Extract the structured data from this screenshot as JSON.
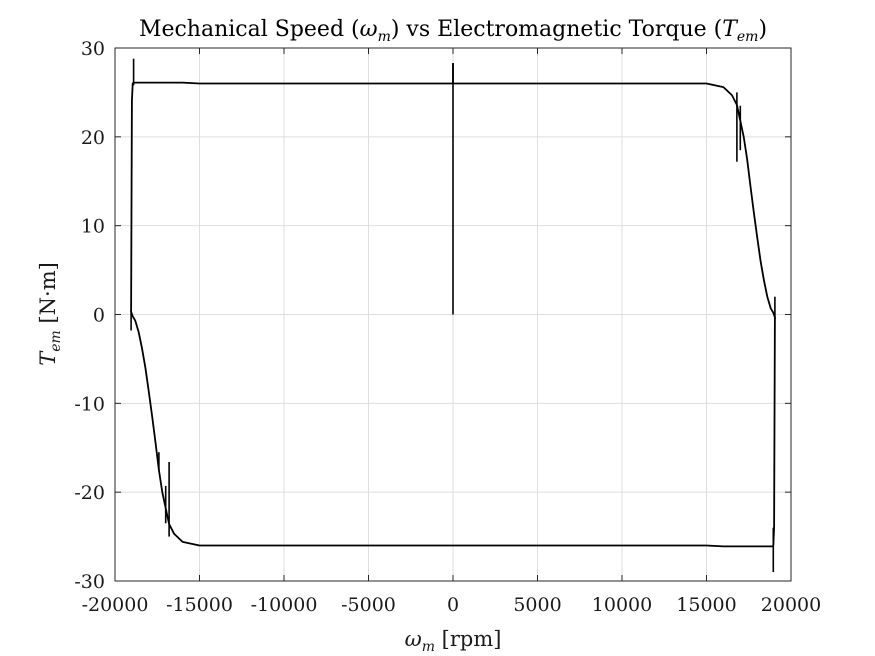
{
  "chart_data": {
    "type": "line",
    "title": {
      "prefix": "Mechanical Speed (",
      "omega": "ω",
      "omega_sub": "m",
      "middle": ") vs Electromagnetic Torque (",
      "torque": "T",
      "torque_sub": "em",
      "suffix": ")"
    },
    "xlabel": {
      "symbol": "ω",
      "sub": "m",
      "unit": " [rpm]"
    },
    "ylabel": {
      "symbol": "T",
      "sub": "em",
      "unit": " [N·m]"
    },
    "xlim": [
      -20000,
      20000
    ],
    "ylim": [
      -30,
      30
    ],
    "xticks": [
      -20000,
      -15000,
      -10000,
      -5000,
      0,
      5000,
      10000,
      15000,
      20000
    ],
    "xtick_labels": [
      "-20000",
      "-15000",
      "-10000",
      "-5000",
      "0",
      "5000",
      "10000",
      "15000",
      "20000"
    ],
    "yticks": [
      -30,
      -20,
      -10,
      0,
      10,
      20,
      30
    ],
    "ytick_labels": [
      "-30",
      "-20",
      "-10",
      "0",
      "10",
      "20",
      "30"
    ],
    "grid": true,
    "color": "#000000",
    "series": [
      {
        "x": [
          0,
          0,
          15000,
          16000,
          16500,
          16800,
          17000,
          17200,
          17400,
          17600,
          17800,
          18000,
          18200,
          18400,
          18600,
          18800,
          18950,
          19050,
          19000,
          18950,
          18900,
          18800,
          18500,
          18000,
          17000,
          16000,
          15000,
          0,
          -15000,
          -16000,
          -16500,
          -16800,
          -17000,
          -17200,
          -17400,
          -17600,
          -17800,
          -18000,
          -18200,
          -18400,
          -18600,
          -18800,
          -18950,
          -19050,
          -19000,
          -18950,
          -18900,
          -18800,
          -18500,
          -18000,
          -17000,
          -16000,
          -15000,
          0
        ],
        "y": [
          28.3,
          26,
          26,
          25.6,
          24.7,
          23.6,
          21.8,
          20,
          17.5,
          14.5,
          11.5,
          8.7,
          6,
          3.8,
          2,
          0.7,
          0.2,
          -0.3,
          -24,
          -26,
          -26.1,
          -26.1,
          -26.1,
          -26.1,
          -26.1,
          -26.1,
          -26,
          -26,
          -26,
          -25.6,
          -24.7,
          -23.6,
          -21.8,
          -20,
          -17.5,
          -14.5,
          -11.5,
          -8.7,
          -6,
          -3.8,
          -2,
          -0.7,
          -0.2,
          0.3,
          24,
          26,
          26.1,
          26.1,
          26.1,
          26.1,
          26.1,
          26.1,
          26,
          26
        ]
      }
    ],
    "spikes": [
      {
        "x": [
          0,
          0
        ],
        "y": [
          0,
          28.3
        ]
      },
      {
        "x": [
          -18900,
          -18900
        ],
        "y": [
          28.8,
          25.8
        ]
      },
      {
        "x": [
          -19050,
          -19050
        ],
        "y": [
          -1.8,
          0.5
        ]
      },
      {
        "x": [
          18950,
          18950
        ],
        "y": [
          -29,
          -24
        ]
      },
      {
        "x": [
          19050,
          19050
        ],
        "y": [
          2,
          -0.5
        ]
      },
      {
        "x": [
          16800,
          16800
        ],
        "y": [
          25,
          17.2
        ]
      },
      {
        "x": [
          17000,
          17000
        ],
        "y": [
          23.5,
          18.5
        ]
      },
      {
        "x": [
          -16800,
          -16800
        ],
        "y": [
          -25,
          -16.6
        ]
      },
      {
        "x": [
          -17000,
          -17000
        ],
        "y": [
          -23.5,
          -19.3
        ]
      },
      {
        "x": [
          -17400,
          -17400
        ],
        "y": [
          -17.5,
          -15.5
        ]
      }
    ]
  }
}
